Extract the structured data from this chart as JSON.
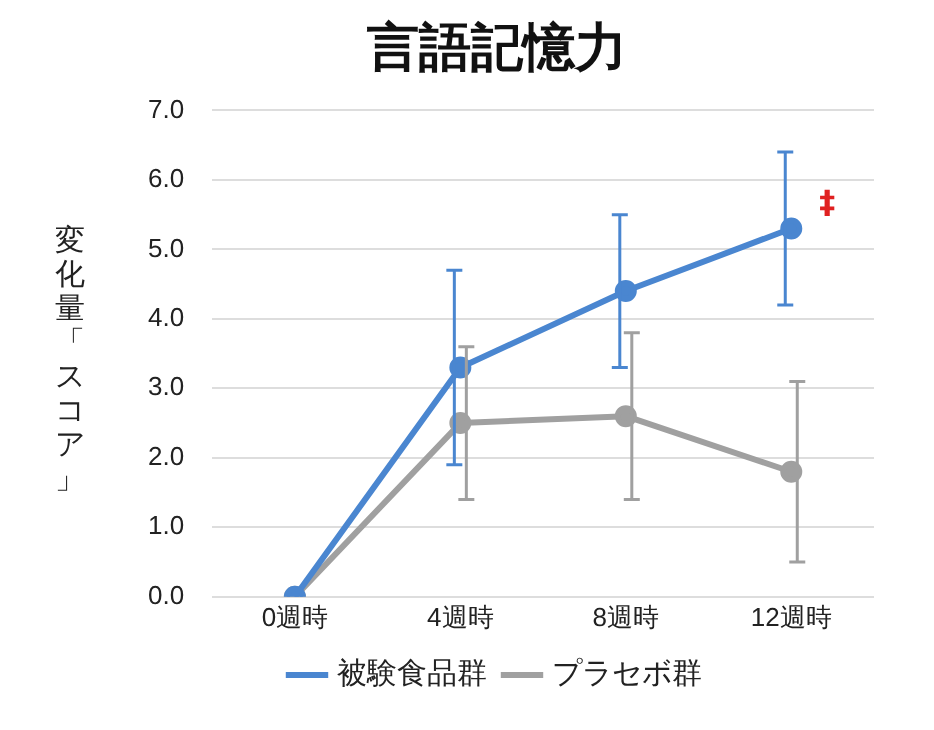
{
  "chart_data": {
    "type": "line",
    "title": "言語記憶力",
    "ylabel": "変化量「スコア」",
    "categories": [
      "0週時",
      "4週時",
      "8週時",
      "12週時"
    ],
    "series": [
      {
        "name": "被験食品群",
        "color": "#4a86d0",
        "values": [
          0,
          3.3,
          4.4,
          5.3
        ],
        "errors": [
          null,
          1.4,
          1.1,
          1.1
        ]
      },
      {
        "name": "プラセボ群",
        "color": "#a0a0a0",
        "values": [
          0,
          2.5,
          2.6,
          1.8
        ],
        "errors": [
          null,
          1.1,
          1.2,
          1.3
        ]
      }
    ],
    "ylim": [
      0,
      7
    ],
    "yticks": [
      {
        "value": 0,
        "label": "0.0"
      },
      {
        "value": 1,
        "label": "1.0"
      },
      {
        "value": 2,
        "label": "2.0"
      },
      {
        "value": 3,
        "label": "3.0"
      },
      {
        "value": 4,
        "label": "4.0"
      },
      {
        "value": 5,
        "label": "5.0"
      },
      {
        "value": 6,
        "label": "6.0"
      },
      {
        "value": 7,
        "label": "7.0"
      }
    ],
    "annotations": [
      "‡"
    ],
    "grid": "y",
    "legend": "bottom",
    "marker": "circle",
    "line_style": "solid"
  }
}
